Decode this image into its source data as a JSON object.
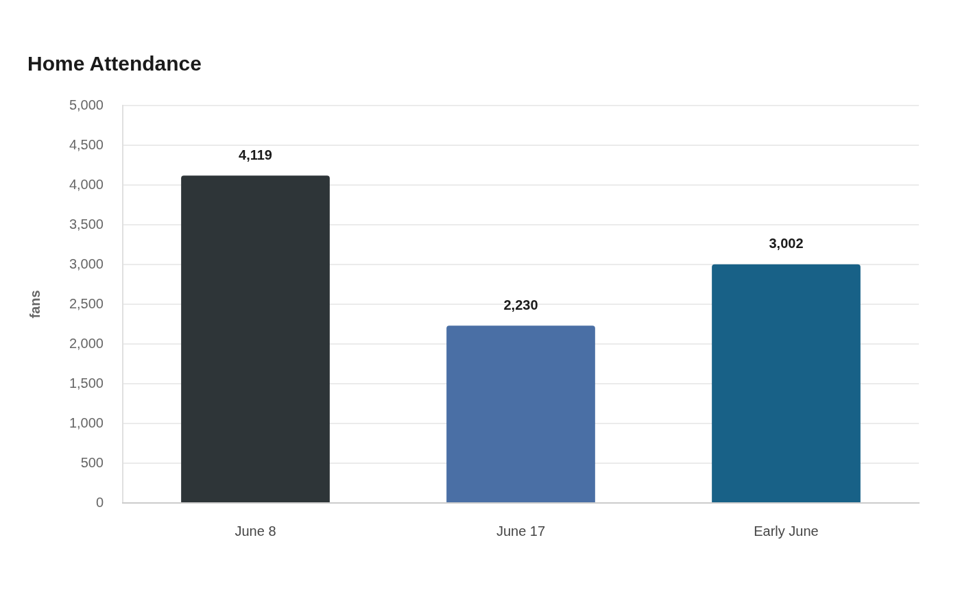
{
  "chart_data": {
    "type": "bar",
    "title": "Home Attendance",
    "ylabel": "fans",
    "categories": [
      "June 8",
      "June 17",
      "Early June"
    ],
    "values": [
      4119,
      2230,
      3002
    ],
    "colors": [
      "#2e3538",
      "#4a6fa5",
      "#186187"
    ],
    "value_labels": [
      "4,119",
      "2,230",
      "3,002"
    ],
    "ylim": [
      0,
      5000
    ],
    "yticks": [
      {
        "value": 0,
        "label": "0"
      },
      {
        "value": 500,
        "label": "500"
      },
      {
        "value": 1000,
        "label": "1,000"
      },
      {
        "value": 1500,
        "label": "1,500"
      },
      {
        "value": 2000,
        "label": "2,000"
      },
      {
        "value": 2500,
        "label": "2,500"
      },
      {
        "value": 3000,
        "label": "3,000"
      },
      {
        "value": 3500,
        "label": "3,500"
      },
      {
        "value": 4000,
        "label": "4,000"
      },
      {
        "value": 4500,
        "label": "4,500"
      },
      {
        "value": 5000,
        "label": "5,000"
      }
    ],
    "grid": "y"
  }
}
